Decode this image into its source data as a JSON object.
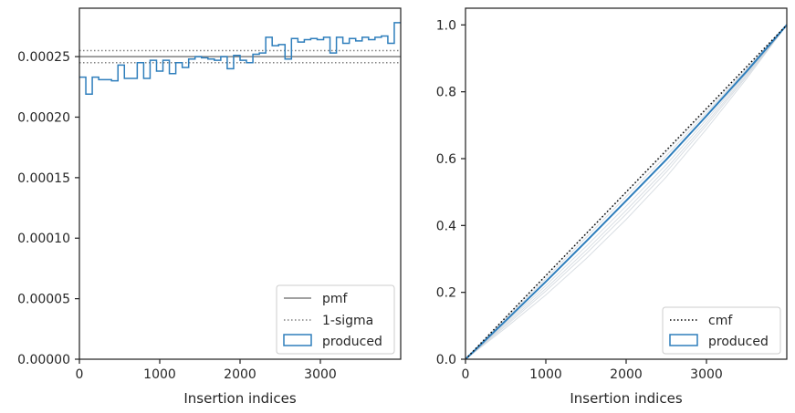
{
  "chart_data": [
    {
      "type": "line",
      "chart_kind": "step histogram",
      "xlabel": "Insertion indices",
      "ylabel": "",
      "xlim": [
        0,
        4000
      ],
      "ylim": [
        0,
        0.00029
      ],
      "x_ticks": [
        0,
        1000,
        2000,
        3000
      ],
      "x_tick_labels": [
        "0",
        "1000",
        "2000",
        "3000"
      ],
      "y_ticks": [
        0,
        5e-05,
        0.0001,
        0.00015,
        0.0002,
        0.00025
      ],
      "y_tick_labels": [
        "0.00000",
        "0.00005",
        "0.00010",
        "0.00015",
        "0.00020",
        "0.00025"
      ],
      "grid": false,
      "legend_position": "lower right",
      "legend": [
        "pmf",
        "1-sigma",
        "produced"
      ],
      "reference_lines": [
        {
          "name": "pmf",
          "y": 0.00025,
          "style": "solid",
          "color": "#808080"
        },
        {
          "name": "1-sigma",
          "y": 0.000255,
          "style": "dotted",
          "color": "#808080"
        },
        {
          "name": "1-sigma",
          "y": 0.000245,
          "style": "dotted",
          "color": "#808080"
        }
      ],
      "series": [
        {
          "name": "produced",
          "color": "#2e7ebc",
          "bin_width": 80,
          "bin_starts": [
            0,
            80,
            160,
            240,
            320,
            400,
            480,
            560,
            640,
            720,
            800,
            880,
            960,
            1040,
            1120,
            1200,
            1280,
            1360,
            1440,
            1520,
            1600,
            1680,
            1760,
            1840,
            1920,
            2000,
            2080,
            2160,
            2240,
            2320,
            2400,
            2480,
            2560,
            2640,
            2720,
            2800,
            2880,
            2960,
            3040,
            3120,
            3200,
            3280,
            3360,
            3440,
            3520,
            3600,
            3680,
            3760,
            3840,
            3920
          ],
          "values": [
            0.000233,
            0.000219,
            0.000233,
            0.000231,
            0.000231,
            0.00023,
            0.000243,
            0.000232,
            0.000232,
            0.000245,
            0.000232,
            0.000247,
            0.000238,
            0.000247,
            0.000236,
            0.000245,
            0.000241,
            0.000248,
            0.00025,
            0.000249,
            0.000248,
            0.000247,
            0.00025,
            0.00024,
            0.000251,
            0.000247,
            0.000245,
            0.000252,
            0.000253,
            0.000266,
            0.000259,
            0.00026,
            0.000248,
            0.000265,
            0.000262,
            0.000264,
            0.000265,
            0.000264,
            0.000266,
            0.000253,
            0.000266,
            0.000261,
            0.000265,
            0.000263,
            0.000266,
            0.000264,
            0.000266,
            0.000267,
            0.000261,
            0.000278
          ]
        }
      ]
    },
    {
      "type": "line",
      "chart_kind": "cumulative",
      "xlabel": "Insertion indices",
      "ylabel": "",
      "xlim": [
        0,
        4000
      ],
      "ylim": [
        0,
        1.05
      ],
      "x_ticks": [
        0,
        1000,
        2000,
        3000
      ],
      "x_tick_labels": [
        "0",
        "1000",
        "2000",
        "3000"
      ],
      "y_ticks": [
        0,
        0.2,
        0.4,
        0.6,
        0.8,
        1.0
      ],
      "y_tick_labels": [
        "0.0",
        "0.2",
        "0.4",
        "0.6",
        "0.8",
        "1.0"
      ],
      "grid": false,
      "legend_position": "lower right",
      "legend": [
        "cmf",
        "produced"
      ],
      "series": [
        {
          "name": "cmf",
          "style": "dotted",
          "color": "#000000",
          "x": [
            0,
            4000
          ],
          "y": [
            0,
            1.0
          ]
        },
        {
          "name": "produced",
          "color": "#2e7ebc",
          "x": [
            0,
            500,
            1000,
            1500,
            2000,
            2500,
            3000,
            3500,
            4000
          ],
          "y": [
            0,
            0.115,
            0.232,
            0.352,
            0.474,
            0.597,
            0.728,
            0.861,
            1.0
          ]
        }
      ]
    }
  ]
}
